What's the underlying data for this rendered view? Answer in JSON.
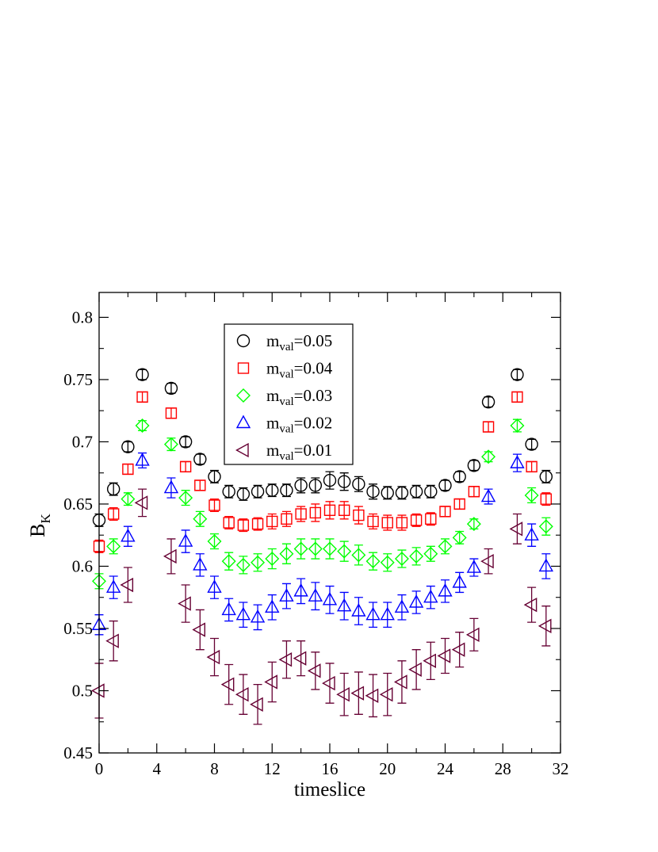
{
  "chart_data": {
    "type": "scatter",
    "xlabel": "timeslice",
    "ylabel": {
      "main": "B",
      "sub": "K"
    },
    "xlim": [
      0,
      32
    ],
    "ylim": [
      0.45,
      0.82
    ],
    "xticks": [
      "0",
      "4",
      "8",
      "12",
      "16",
      "20",
      "24",
      "28",
      "32"
    ],
    "yticks": [
      "0.45",
      "0.5",
      "0.55",
      "0.6",
      "0.65",
      "0.7",
      "0.75",
      "0.8"
    ],
    "grid": false,
    "legend_position": "top-center",
    "series": [
      {
        "legend_label": {
          "prefix": "m",
          "sub": "val",
          "suffix": "=0.05"
        },
        "marker": "circle",
        "color": "#000000",
        "x": [
          0,
          1,
          2,
          3,
          5,
          6,
          7,
          8,
          9,
          10,
          11,
          12,
          13,
          14,
          15,
          16,
          17,
          18,
          19,
          20,
          21,
          22,
          23,
          24,
          25,
          26,
          27,
          29,
          30,
          31
        ],
        "y": [
          0.637,
          0.662,
          0.696,
          0.754,
          0.743,
          0.7,
          0.686,
          0.672,
          0.66,
          0.658,
          0.66,
          0.661,
          0.661,
          0.665,
          0.665,
          0.669,
          0.668,
          0.666,
          0.66,
          0.659,
          0.659,
          0.66,
          0.66,
          0.665,
          0.672,
          0.681,
          0.732,
          0.754,
          0.698,
          0.672
        ],
        "err": [
          0.005,
          0.005,
          0.004,
          0.004,
          0.004,
          0.004,
          0.004,
          0.005,
          0.005,
          0.005,
          0.005,
          0.005,
          0.005,
          0.006,
          0.006,
          0.007,
          0.007,
          0.006,
          0.006,
          0.005,
          0.005,
          0.005,
          0.005,
          0.004,
          0.004,
          0.004,
          0.004,
          0.004,
          0.004,
          0.005
        ]
      },
      {
        "legend_label": {
          "prefix": "m",
          "sub": "val",
          "suffix": "=0.04"
        },
        "marker": "square",
        "color": "#ff0000",
        "x": [
          0,
          1,
          2,
          3,
          5,
          6,
          7,
          8,
          9,
          10,
          11,
          12,
          13,
          14,
          15,
          16,
          17,
          18,
          19,
          20,
          21,
          22,
          23,
          24,
          25,
          26,
          27,
          29,
          30,
          31
        ],
        "y": [
          0.616,
          0.642,
          0.678,
          0.736,
          0.723,
          0.68,
          0.665,
          0.649,
          0.635,
          0.633,
          0.634,
          0.636,
          0.638,
          0.642,
          0.643,
          0.645,
          0.645,
          0.641,
          0.636,
          0.635,
          0.635,
          0.637,
          0.638,
          0.644,
          0.65,
          0.66,
          0.712,
          0.736,
          0.68,
          0.654
        ],
        "err": [
          0.005,
          0.005,
          0.004,
          0.004,
          0.004,
          0.004,
          0.004,
          0.005,
          0.005,
          0.005,
          0.005,
          0.006,
          0.006,
          0.006,
          0.007,
          0.007,
          0.007,
          0.007,
          0.006,
          0.006,
          0.006,
          0.005,
          0.005,
          0.004,
          0.004,
          0.004,
          0.004,
          0.004,
          0.004,
          0.005
        ]
      },
      {
        "legend_label": {
          "prefix": "m",
          "sub": "val",
          "suffix": "=0.03"
        },
        "marker": "diamond",
        "color": "#00ff00",
        "x": [
          0,
          1,
          2,
          3,
          5,
          6,
          7,
          8,
          9,
          10,
          11,
          12,
          13,
          14,
          15,
          16,
          17,
          18,
          19,
          20,
          21,
          22,
          23,
          24,
          25,
          26,
          27,
          29,
          30,
          31
        ],
        "y": [
          0.588,
          0.616,
          0.654,
          0.713,
          0.698,
          0.655,
          0.638,
          0.62,
          0.604,
          0.601,
          0.603,
          0.606,
          0.61,
          0.614,
          0.614,
          0.614,
          0.612,
          0.609,
          0.604,
          0.603,
          0.606,
          0.608,
          0.61,
          0.616,
          0.623,
          0.634,
          0.688,
          0.713,
          0.657,
          0.632
        ],
        "err": [
          0.006,
          0.006,
          0.005,
          0.004,
          0.005,
          0.006,
          0.006,
          0.006,
          0.007,
          0.007,
          0.007,
          0.008,
          0.008,
          0.008,
          0.008,
          0.008,
          0.008,
          0.008,
          0.007,
          0.007,
          0.007,
          0.007,
          0.006,
          0.006,
          0.005,
          0.004,
          0.004,
          0.005,
          0.006,
          0.007
        ]
      },
      {
        "legend_label": {
          "prefix": "m",
          "sub": "val",
          "suffix": "=0.02"
        },
        "marker": "triangle-up",
        "color": "#0000ff",
        "x": [
          0,
          1,
          2,
          3,
          5,
          6,
          7,
          8,
          9,
          10,
          11,
          12,
          13,
          14,
          15,
          16,
          17,
          18,
          19,
          20,
          21,
          22,
          23,
          24,
          25,
          26,
          27,
          29,
          30,
          31
        ],
        "y": [
          0.553,
          0.583,
          0.624,
          0.685,
          0.663,
          0.62,
          0.601,
          0.583,
          0.565,
          0.561,
          0.559,
          0.567,
          0.576,
          0.58,
          0.576,
          0.573,
          0.568,
          0.564,
          0.561,
          0.561,
          0.567,
          0.571,
          0.575,
          0.58,
          0.587,
          0.599,
          0.656,
          0.683,
          0.625,
          0.6
        ],
        "err": [
          0.008,
          0.009,
          0.008,
          0.006,
          0.008,
          0.009,
          0.009,
          0.009,
          0.009,
          0.01,
          0.01,
          0.01,
          0.01,
          0.01,
          0.011,
          0.011,
          0.011,
          0.011,
          0.01,
          0.01,
          0.01,
          0.009,
          0.009,
          0.009,
          0.008,
          0.007,
          0.006,
          0.007,
          0.009,
          0.01
        ]
      },
      {
        "legend_label": {
          "prefix": "m",
          "sub": "val",
          "suffix": "=0.01"
        },
        "marker": "triangle-left",
        "color": "#660033",
        "x": [
          0,
          1,
          2,
          3,
          5,
          6,
          7,
          8,
          9,
          10,
          11,
          12,
          13,
          14,
          15,
          16,
          17,
          18,
          19,
          20,
          21,
          22,
          23,
          24,
          25,
          26,
          27,
          29,
          30,
          31
        ],
        "y": [
          0.5,
          0.54,
          0.585,
          0.651,
          0.608,
          0.57,
          0.549,
          0.527,
          0.505,
          0.497,
          0.489,
          0.507,
          0.525,
          0.526,
          0.516,
          0.506,
          0.497,
          0.498,
          0.496,
          0.497,
          0.507,
          0.517,
          0.524,
          0.528,
          0.533,
          0.545,
          0.604,
          0.63,
          0.569,
          0.552
        ],
        "err": [
          0.022,
          0.016,
          0.014,
          0.011,
          0.014,
          0.015,
          0.016,
          0.015,
          0.016,
          0.016,
          0.016,
          0.016,
          0.015,
          0.014,
          0.015,
          0.016,
          0.017,
          0.017,
          0.017,
          0.017,
          0.017,
          0.016,
          0.015,
          0.014,
          0.014,
          0.013,
          0.01,
          0.012,
          0.014,
          0.016
        ]
      }
    ]
  }
}
